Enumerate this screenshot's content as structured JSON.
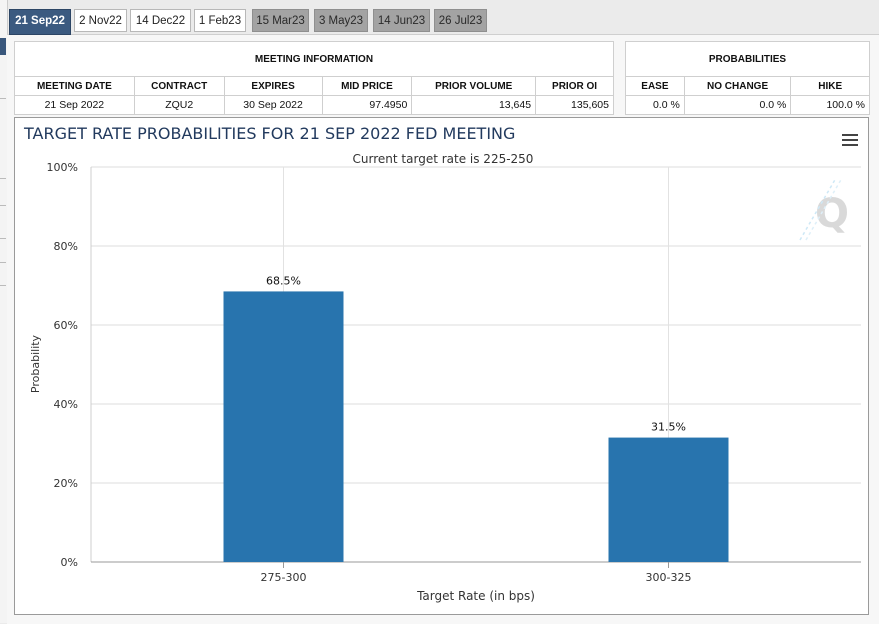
{
  "tabs": [
    {
      "label": "21 Sep22",
      "state": "active"
    },
    {
      "label": "2 Nov22",
      "state": "light"
    },
    {
      "label": "14 Dec22",
      "state": "light"
    },
    {
      "label": "1 Feb23",
      "state": "light"
    },
    {
      "label": "15 Mar23",
      "state": "dark"
    },
    {
      "label": "3 May23",
      "state": "dark"
    },
    {
      "label": "14 Jun23",
      "state": "dark"
    },
    {
      "label": "26 Jul23",
      "state": "dark"
    }
  ],
  "meeting_info": {
    "title": "MEETING INFORMATION",
    "headers": [
      "MEETING DATE",
      "CONTRACT",
      "EXPIRES",
      "MID PRICE",
      "PRIOR VOLUME",
      "PRIOR OI"
    ],
    "row": [
      "21 Sep 2022",
      "ZQU2",
      "30 Sep 2022",
      "97.4950",
      "13,645",
      "135,605"
    ]
  },
  "probabilities": {
    "title": "PROBABILITIES",
    "headers": [
      "EASE",
      "NO CHANGE",
      "HIKE"
    ],
    "row": [
      "0.0 %",
      "0.0 %",
      "100.0 %"
    ]
  },
  "chart_data": {
    "type": "bar",
    "title": "TARGET RATE PROBABILITIES FOR 21 SEP 2022 FED MEETING",
    "subtitle": "Current target rate is 225-250",
    "xlabel": "Target Rate (in bps)",
    "ylabel": "Probability",
    "categories": [
      "275-300",
      "300-325"
    ],
    "values": [
      68.5,
      31.5
    ],
    "data_labels": [
      "68.5%",
      "31.5%"
    ],
    "ylim": [
      0,
      100
    ],
    "yticks": [
      "0%",
      "20%",
      "40%",
      "60%",
      "80%",
      "100%"
    ],
    "grid": true,
    "bar_color": "#2874ae"
  },
  "colors": {
    "accent": "#3b5a80",
    "title": "#223a5e"
  }
}
